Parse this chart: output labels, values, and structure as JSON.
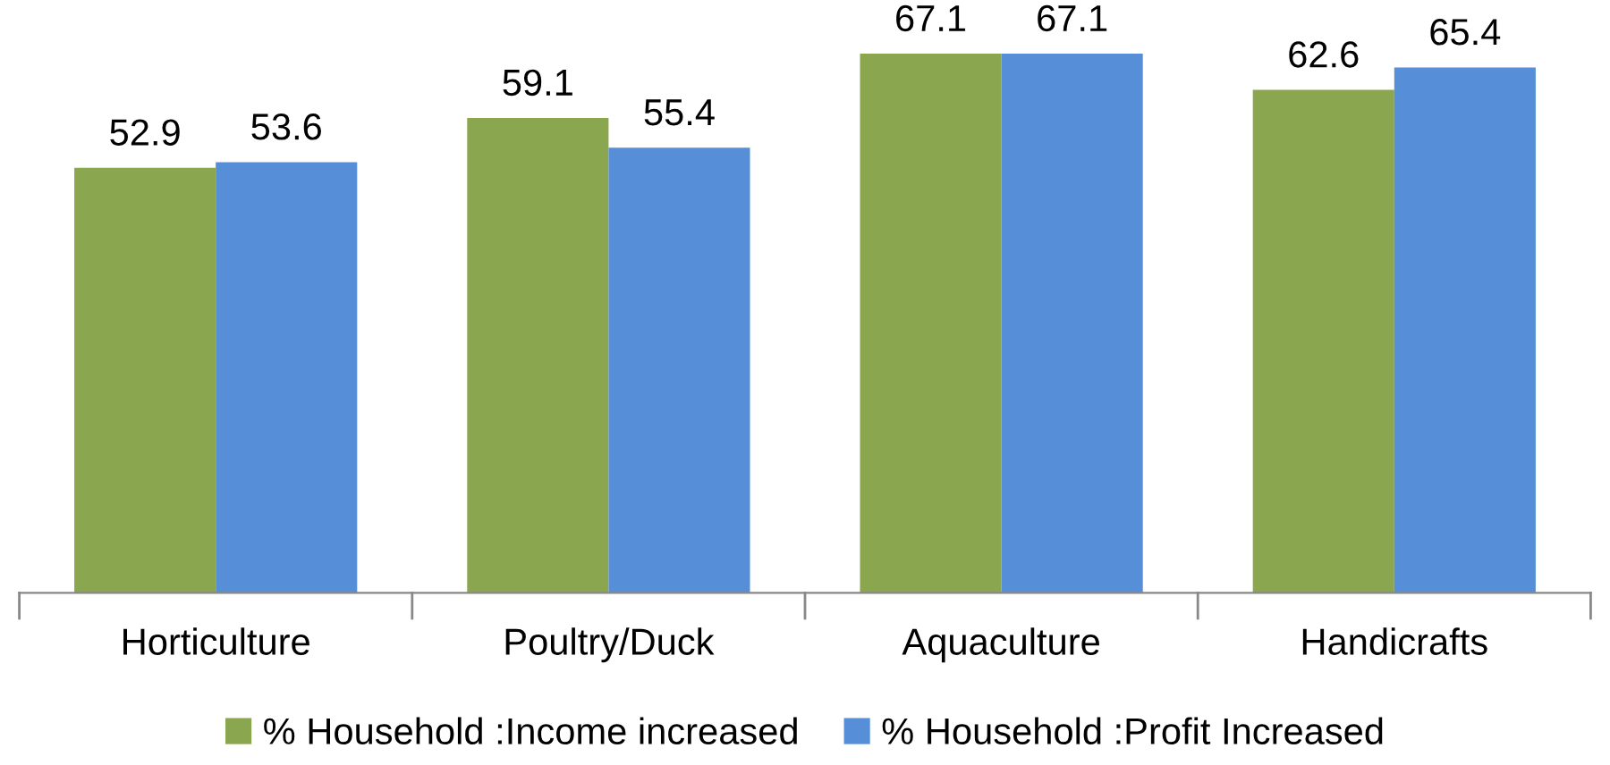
{
  "chart_data": {
    "type": "bar",
    "categories": [
      "Horticulture",
      "Poultry/Duck",
      "Aquaculture",
      "Handicrafts"
    ],
    "series": [
      {
        "name": "% Household :Income increased",
        "color": "#8aa64f",
        "values": [
          52.9,
          59.1,
          67.1,
          62.6
        ]
      },
      {
        "name": "% Household :Profit Increased",
        "color": "#568fd8",
        "values": [
          53.6,
          55.4,
          67.1,
          65.4
        ]
      }
    ],
    "data_labels": true,
    "legend": "bottom",
    "grid": false
  }
}
